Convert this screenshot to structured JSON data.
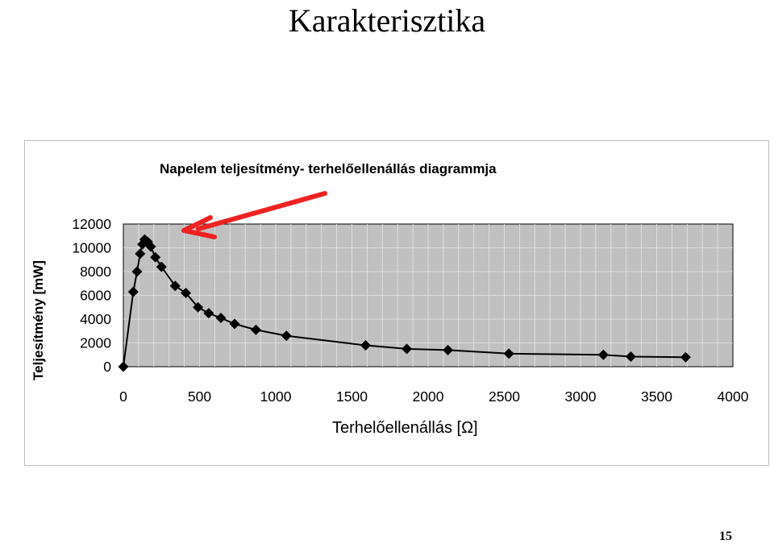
{
  "slide": {
    "title": "Karakterisztika",
    "page_number": "15"
  },
  "chart_data": {
    "type": "line",
    "title": "Napelem teljesítmény- terhelőellenállás diagrammja",
    "xlabel": "Terhelőellenállás [Ω]",
    "ylabel": "Teljesítmény [mW]",
    "xlim": [
      0,
      4000
    ],
    "ylim": [
      0,
      12000
    ],
    "xticks": [
      0,
      500,
      1000,
      1500,
      2000,
      2500,
      3000,
      3500,
      4000
    ],
    "yticks": [
      0,
      2000,
      4000,
      6000,
      8000,
      10000,
      12000
    ],
    "grid": true,
    "background": "#c0c0c0",
    "marker": "diamond",
    "line_color": "#000000",
    "annotation_arrow_color": "#ee2222",
    "series": [
      {
        "x": [
          0,
          65,
          90,
          110,
          125,
          140,
          160,
          180,
          210,
          250,
          340,
          410,
          490,
          560,
          640,
          730,
          870,
          1070,
          1590,
          1860,
          2130,
          2530,
          3150,
          3330,
          3690
        ],
        "y": [
          0,
          6300,
          8000,
          9500,
          10300,
          10700,
          10500,
          10100,
          9200,
          8400,
          6800,
          6200,
          5000,
          4500,
          4100,
          3600,
          3100,
          2600,
          1800,
          1500,
          1400,
          1100,
          1000,
          850,
          800
        ]
      }
    ]
  }
}
